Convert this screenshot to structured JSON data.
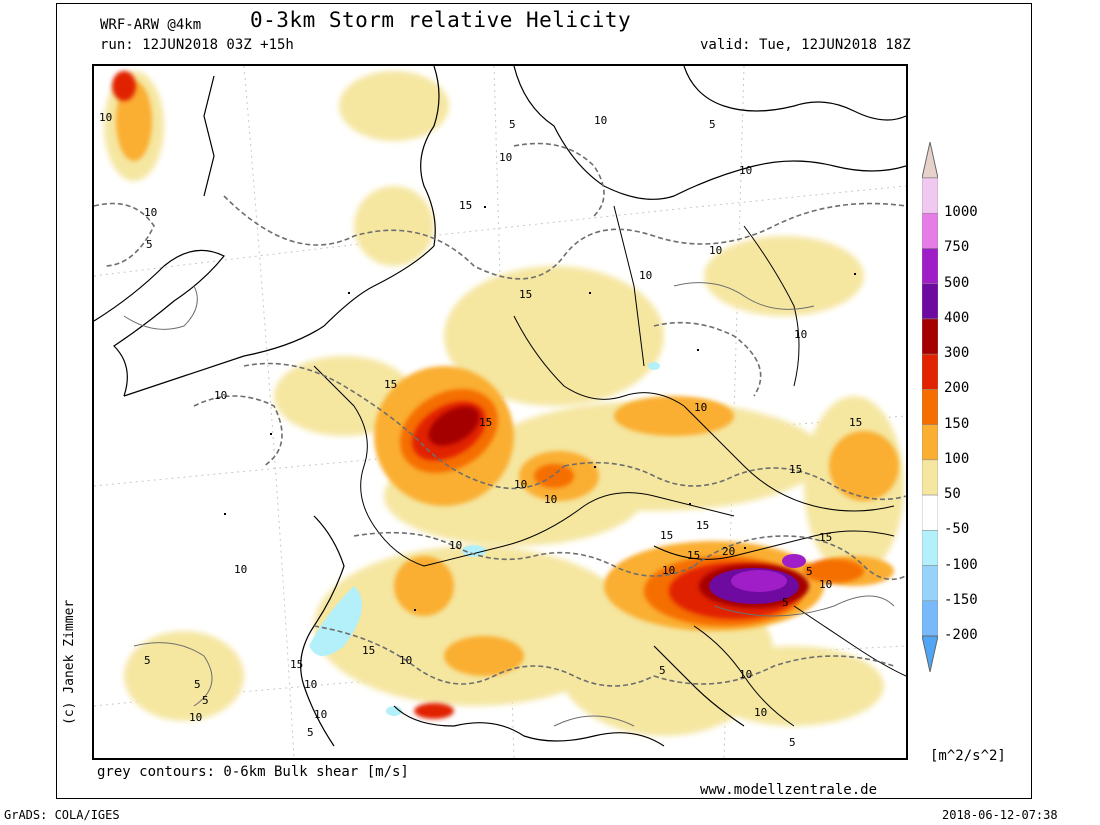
{
  "header": {
    "model": "WRF-ARW @4km",
    "title": "0-3km Storm relative Helicity",
    "run": "run: 12JUN2018 03Z +15h",
    "valid": "valid: Tue, 12JUN2018 18Z"
  },
  "footer": {
    "note": "grey contours: 0-6km Bulk shear [m/s]",
    "website": "www.modellzentrale.de",
    "software": "GrADS: COLA/IGES",
    "timestamp": "2018-06-12-07:38",
    "copyright": "(c) Janek Zimmer"
  },
  "colorbar": {
    "unit": "[m^2/s^2]",
    "levels": [
      {
        "label": "1000",
        "color": "#f0c8f0"
      },
      {
        "label": "750",
        "color": "#e67de6"
      },
      {
        "label": "500",
        "color": "#a01ec8"
      },
      {
        "label": "400",
        "color": "#6e0aa0"
      },
      {
        "label": "300",
        "color": "#a50000"
      },
      {
        "label": "200",
        "color": "#e12300"
      },
      {
        "label": "150",
        "color": "#f56e00"
      },
      {
        "label": "100",
        "color": "#faaf32"
      },
      {
        "label": "50",
        "color": "#f5e6a0"
      },
      {
        "label": "-50",
        "color": "#ffffff"
      },
      {
        "label": "-100",
        "color": "#b4f0fa"
      },
      {
        "label": "-150",
        "color": "#96d2fa"
      },
      {
        "label": "-200",
        "color": "#78b9fa"
      }
    ],
    "top_cap_color": "#e6d2c8",
    "bottom_cap_color": "#50a5f5"
  },
  "contour_labels": [
    "10",
    "5",
    "10",
    "10",
    "5",
    "15",
    "10",
    "5",
    "10",
    "15",
    "10",
    "10",
    "15",
    "15",
    "10",
    "10",
    "10",
    "10",
    "10",
    "15",
    "15",
    "10",
    "15",
    "15",
    "15",
    "20",
    "15",
    "10",
    "5",
    "10",
    "5",
    "15",
    "10",
    "5",
    "10",
    "10",
    "5",
    "15",
    "10",
    "5",
    "10",
    "5",
    "10",
    "5",
    "10",
    "5"
  ]
}
